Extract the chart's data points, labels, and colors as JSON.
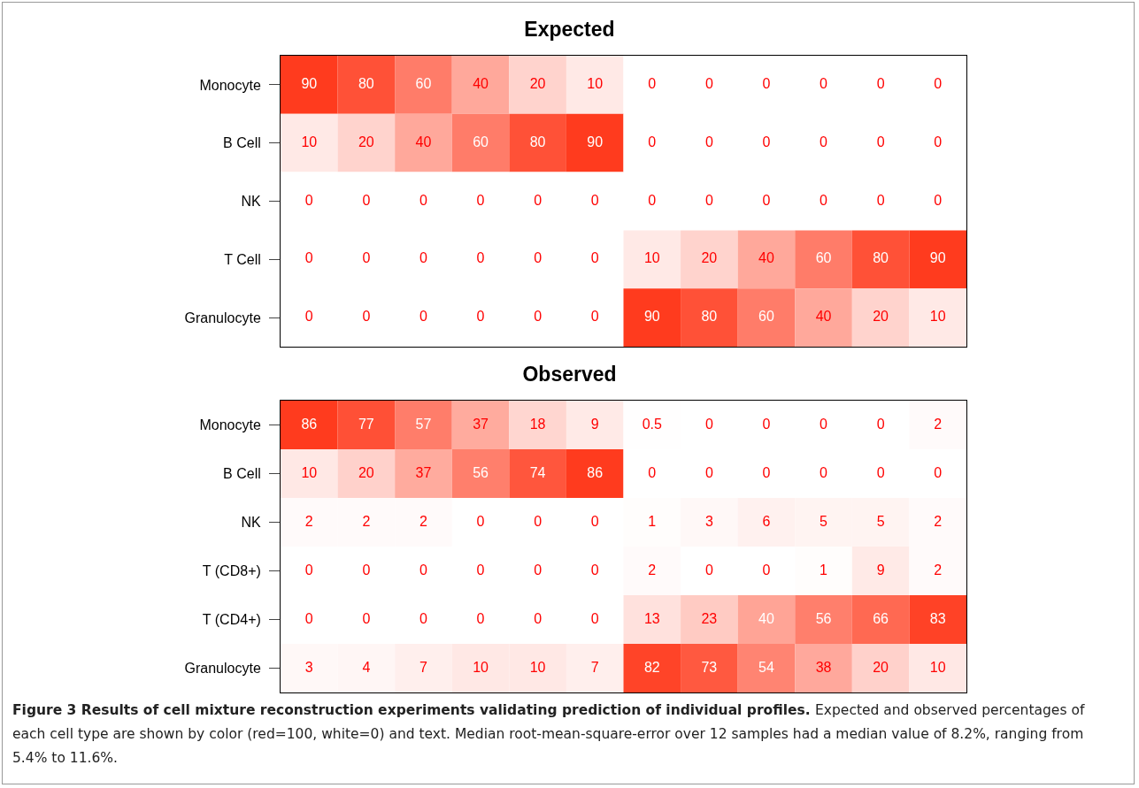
{
  "chart_data": [
    {
      "type": "heatmap",
      "title": "Expected",
      "color": "#ff3b1e",
      "data_labels": true,
      "categories": [
        null,
        null,
        null,
        null,
        null,
        null,
        null,
        null,
        null,
        null,
        null,
        null
      ],
      "y_categories": [
        "Monocyte",
        "B Cell",
        "NK",
        "T Cell",
        "Granulocyte"
      ],
      "cells": [
        [
          90,
          80,
          60,
          40,
          20,
          10,
          0,
          0,
          0,
          0,
          0,
          0
        ],
        [
          10,
          20,
          40,
          60,
          80,
          90,
          0,
          0,
          0,
          0,
          0,
          0
        ],
        [
          0,
          0,
          0,
          0,
          0,
          0,
          0,
          0,
          0,
          0,
          0,
          0
        ],
        [
          0,
          0,
          0,
          0,
          0,
          0,
          10,
          20,
          40,
          60,
          80,
          90
        ],
        [
          0,
          0,
          0,
          0,
          0,
          0,
          90,
          80,
          60,
          40,
          20,
          10
        ]
      ]
    },
    {
      "type": "heatmap",
      "title": "Observed",
      "color": "#ff3b1e",
      "data_labels": true,
      "categories": [
        null,
        null,
        null,
        null,
        null,
        null,
        null,
        null,
        null,
        null,
        null,
        null
      ],
      "y_categories": [
        "Monocyte",
        "B Cell",
        "NK",
        "T (CD8+)",
        "T (CD4+)",
        "Granulocyte"
      ],
      "cells": [
        [
          86,
          77,
          57,
          37,
          18,
          9,
          0.5,
          0,
          0,
          0,
          0,
          2
        ],
        [
          10,
          20,
          37,
          56,
          74,
          86,
          0,
          0,
          0,
          0,
          0,
          0
        ],
        [
          2,
          2,
          2,
          0,
          0,
          0,
          1,
          3,
          6,
          5,
          5,
          2
        ],
        [
          0,
          0,
          0,
          0,
          0,
          0,
          2,
          0,
          0,
          1,
          9,
          2
        ],
        [
          0,
          0,
          0,
          0,
          0,
          0,
          13,
          23,
          40,
          56,
          66,
          83
        ],
        [
          3,
          4,
          7,
          10,
          10,
          7,
          82,
          73,
          54,
          38,
          20,
          10
        ]
      ],
      "annotations": [
        "Figure 3 Results of cell mixture reconstruction experiments validating prediction of individual profiles.",
        "Expected and observed percentages of each cell type are shown by color (red=100, white=0) and text. Median root-mean-square-error over 12 samples had a median value of 8.2%, ranging from 5.4% to 11.6%."
      ]
    }
  ]
}
